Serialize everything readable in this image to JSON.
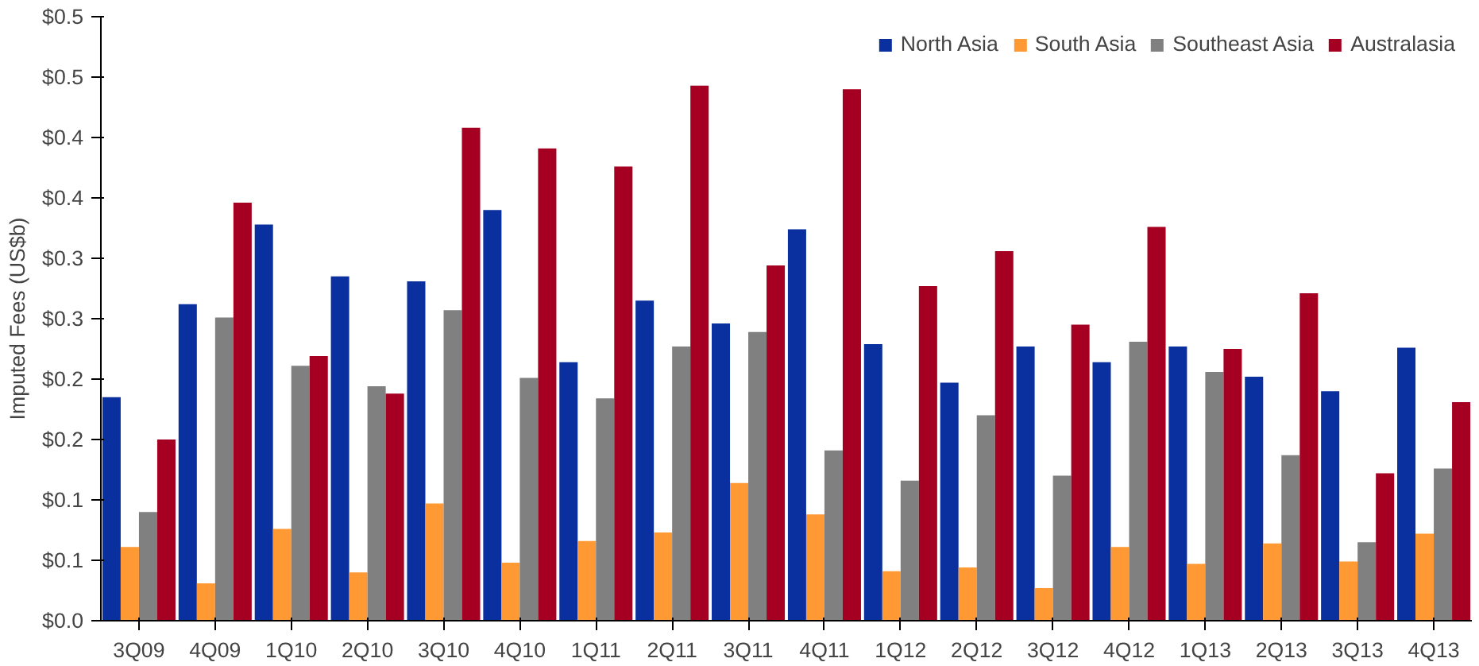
{
  "chart_data": {
    "type": "bar",
    "ylabel": "Imputed Fees (US$b)",
    "categories": [
      "3Q09",
      "4Q09",
      "1Q10",
      "2Q10",
      "3Q10",
      "4Q10",
      "1Q11",
      "2Q11",
      "3Q11",
      "4Q11",
      "1Q12",
      "2Q12",
      "3Q12",
      "4Q12",
      "1Q13",
      "2Q13",
      "3Q13",
      "4Q13"
    ],
    "series": [
      {
        "name": "North Asia",
        "color": "#0a2f9e",
        "values": [
          0.185,
          0.262,
          0.328,
          0.285,
          0.281,
          0.34,
          0.214,
          0.265,
          0.246,
          0.324,
          0.229,
          0.197,
          0.227,
          0.214,
          0.227,
          0.202,
          0.19,
          0.226
        ]
      },
      {
        "name": "South Asia",
        "color": "#ff9933",
        "values": [
          0.061,
          0.031,
          0.076,
          0.04,
          0.097,
          0.048,
          0.066,
          0.073,
          0.114,
          0.088,
          0.041,
          0.044,
          0.027,
          0.061,
          0.047,
          0.064,
          0.049,
          0.072
        ]
      },
      {
        "name": "Southeast Asia",
        "color": "#808080",
        "values": [
          0.09,
          0.251,
          0.211,
          0.194,
          0.257,
          0.201,
          0.184,
          0.227,
          0.239,
          0.141,
          0.116,
          0.17,
          0.12,
          0.231,
          0.206,
          0.137,
          0.065,
          0.126
        ]
      },
      {
        "name": "Australasia",
        "color": "#a50021",
        "values": [
          0.15,
          0.346,
          0.219,
          0.188,
          0.408,
          0.391,
          0.376,
          0.443,
          0.294,
          0.44,
          0.277,
          0.306,
          0.245,
          0.326,
          0.225,
          0.271,
          0.122,
          0.181
        ]
      }
    ],
    "ylim": [
      0,
      0.5
    ],
    "yticks": [
      {
        "value": 0,
        "label": "$0.0"
      },
      {
        "value": 0.05,
        "label": "$0.1"
      },
      {
        "value": 0.1,
        "label": "$0.1"
      },
      {
        "value": 0.15,
        "label": "$0.2"
      },
      {
        "value": 0.2,
        "label": "$0.2"
      },
      {
        "value": 0.25,
        "label": "$0.3"
      },
      {
        "value": 0.3,
        "label": "$0.3"
      },
      {
        "value": 0.35,
        "label": "$0.4"
      },
      {
        "value": 0.4,
        "label": "$0.4"
      },
      {
        "value": 0.45,
        "label": "$0.5"
      },
      {
        "value": 0.5,
        "label": "$0.5"
      }
    ],
    "grid": false,
    "legend": "top right"
  }
}
